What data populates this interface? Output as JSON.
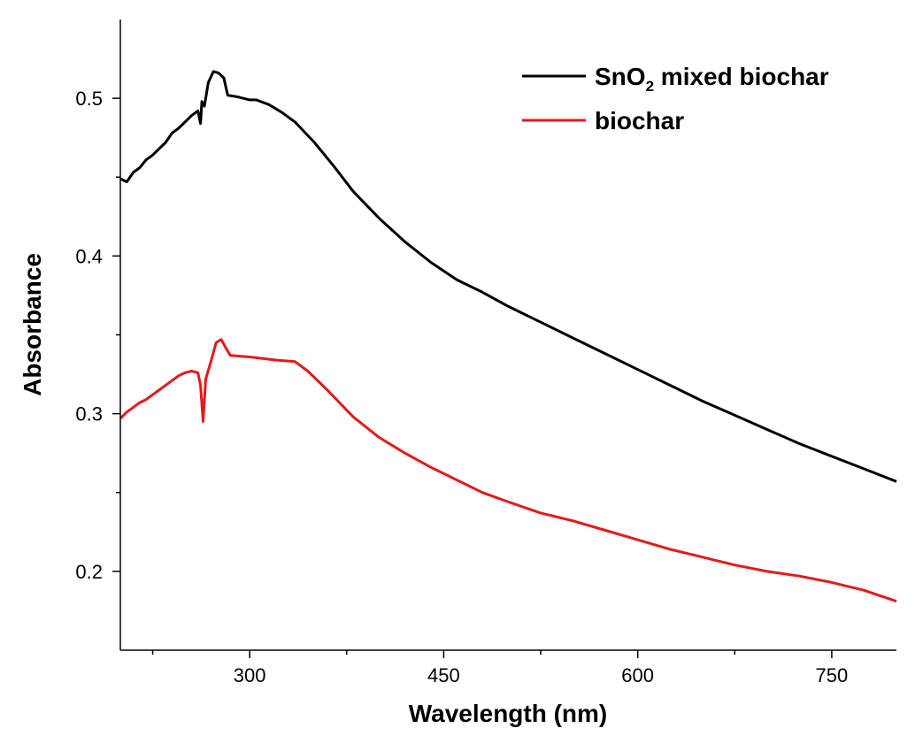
{
  "chart_data": {
    "type": "line",
    "xlabel": "Wavelength (nm)",
    "ylabel": "Absorbance",
    "xlim": [
      200,
      800
    ],
    "ylim": [
      0.15,
      0.55
    ],
    "x_ticks_major": [
      300,
      450,
      600,
      750
    ],
    "x_ticks_minor": [
      225,
      375,
      525,
      675
    ],
    "y_ticks_major": [
      0.2,
      0.3,
      0.4,
      0.5
    ],
    "y_ticks_minor": [
      0.25,
      0.35,
      0.45
    ],
    "x_tick_labels": [
      "300",
      "450",
      "600",
      "750"
    ],
    "y_tick_labels": [
      "0.2",
      "0.3",
      "0.4",
      "0.5"
    ],
    "grid": false,
    "legend_position": "top-right",
    "series": [
      {
        "name": "SnO2 mixed biochar",
        "legend_main": "SnO",
        "legend_sub": "2",
        "legend_rest": " mixed biochar",
        "color": "#000000",
        "points": [
          [
            200,
            0.449
          ],
          [
            205,
            0.447
          ],
          [
            210,
            0.453
          ],
          [
            215,
            0.456
          ],
          [
            220,
            0.461
          ],
          [
            225,
            0.464
          ],
          [
            230,
            0.468
          ],
          [
            235,
            0.472
          ],
          [
            240,
            0.478
          ],
          [
            245,
            0.481
          ],
          [
            250,
            0.485
          ],
          [
            255,
            0.489
          ],
          [
            260,
            0.492
          ],
          [
            262,
            0.484
          ],
          [
            263,
            0.498
          ],
          [
            265,
            0.495
          ],
          [
            268,
            0.51
          ],
          [
            272,
            0.517
          ],
          [
            276,
            0.516
          ],
          [
            280,
            0.513
          ],
          [
            283,
            0.502
          ],
          [
            290,
            0.501
          ],
          [
            300,
            0.499
          ],
          [
            305,
            0.499
          ],
          [
            315,
            0.496
          ],
          [
            325,
            0.491
          ],
          [
            335,
            0.485
          ],
          [
            350,
            0.472
          ],
          [
            365,
            0.457
          ],
          [
            380,
            0.441
          ],
          [
            400,
            0.424
          ],
          [
            420,
            0.409
          ],
          [
            440,
            0.396
          ],
          [
            460,
            0.385
          ],
          [
            480,
            0.377
          ],
          [
            500,
            0.368
          ],
          [
            525,
            0.358
          ],
          [
            550,
            0.348
          ],
          [
            575,
            0.338
          ],
          [
            600,
            0.328
          ],
          [
            625,
            0.318
          ],
          [
            650,
            0.308
          ],
          [
            675,
            0.299
          ],
          [
            700,
            0.29
          ],
          [
            725,
            0.281
          ],
          [
            750,
            0.273
          ],
          [
            775,
            0.265
          ],
          [
            800,
            0.257
          ]
        ]
      },
      {
        "name": "biochar",
        "legend_main": "biochar",
        "legend_sub": "",
        "legend_rest": "",
        "color": "#e31a1c",
        "points": [
          [
            200,
            0.297
          ],
          [
            205,
            0.301
          ],
          [
            210,
            0.304
          ],
          [
            215,
            0.307
          ],
          [
            220,
            0.309
          ],
          [
            225,
            0.312
          ],
          [
            230,
            0.315
          ],
          [
            235,
            0.318
          ],
          [
            240,
            0.321
          ],
          [
            245,
            0.324
          ],
          [
            250,
            0.326
          ],
          [
            255,
            0.327
          ],
          [
            260,
            0.326
          ],
          [
            262,
            0.318
          ],
          [
            264,
            0.295
          ],
          [
            266,
            0.322
          ],
          [
            270,
            0.333
          ],
          [
            274,
            0.345
          ],
          [
            278,
            0.347
          ],
          [
            282,
            0.341
          ],
          [
            285,
            0.337
          ],
          [
            300,
            0.336
          ],
          [
            320,
            0.334
          ],
          [
            335,
            0.333
          ],
          [
            345,
            0.327
          ],
          [
            360,
            0.315
          ],
          [
            380,
            0.298
          ],
          [
            400,
            0.285
          ],
          [
            420,
            0.275
          ],
          [
            440,
            0.266
          ],
          [
            460,
            0.258
          ],
          [
            480,
            0.25
          ],
          [
            500,
            0.244
          ],
          [
            525,
            0.237
          ],
          [
            550,
            0.232
          ],
          [
            575,
            0.226
          ],
          [
            600,
            0.22
          ],
          [
            625,
            0.214
          ],
          [
            650,
            0.209
          ],
          [
            675,
            0.204
          ],
          [
            700,
            0.2
          ],
          [
            725,
            0.197
          ],
          [
            750,
            0.193
          ],
          [
            775,
            0.188
          ],
          [
            800,
            0.181
          ]
        ]
      }
    ]
  }
}
